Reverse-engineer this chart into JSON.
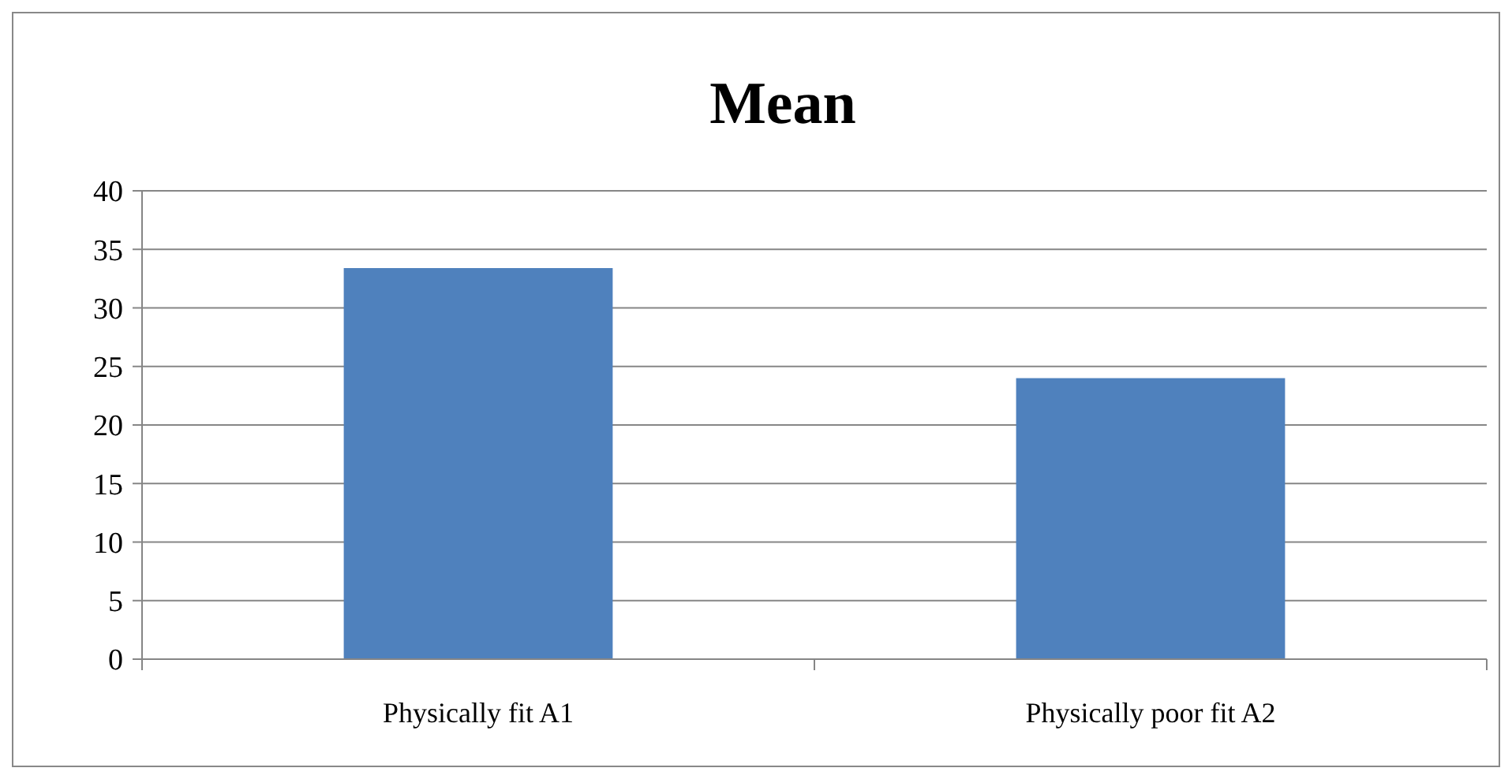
{
  "chart_data": {
    "type": "bar",
    "title": "Mean",
    "categories": [
      "Physically fit A1",
      "Physically poor fit A2"
    ],
    "values": [
      33.4,
      24
    ],
    "color": "#4f81bd",
    "ylim": [
      0,
      40
    ],
    "yticks": [
      0,
      5,
      10,
      15,
      20,
      25,
      30,
      35,
      40
    ],
    "grid": "y"
  }
}
